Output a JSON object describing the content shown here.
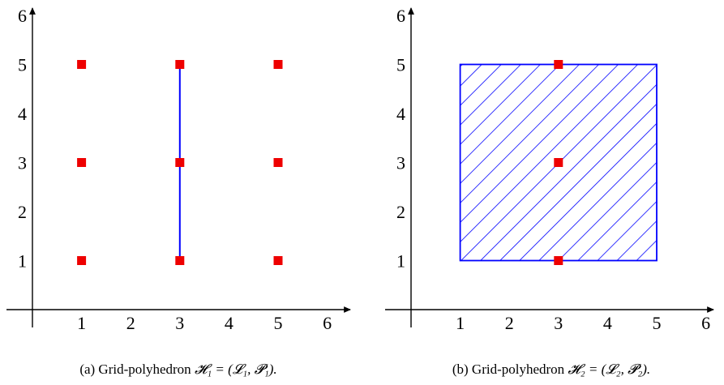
{
  "figure": {
    "panels": [
      {
        "id": "a",
        "caption_prefix": "(a) Grid-polyhedron",
        "caption_math": "𝓗₁ = (𝓛₁, 𝓟₁).",
        "x_ticks": [
          "1",
          "2",
          "3",
          "4",
          "5",
          "6"
        ],
        "y_ticks": [
          "1",
          "2",
          "3",
          "4",
          "5",
          "6"
        ],
        "polyhedron": {
          "kind": "segment",
          "x": [
            3,
            3
          ],
          "y": [
            1,
            5
          ],
          "color": "#0000ff"
        },
        "points": [
          [
            1,
            1
          ],
          [
            1,
            3
          ],
          [
            1,
            5
          ],
          [
            3,
            1
          ],
          [
            3,
            3
          ],
          [
            3,
            5
          ],
          [
            5,
            1
          ],
          [
            5,
            3
          ],
          [
            5,
            5
          ]
        ],
        "point_color": "#ee0000"
      },
      {
        "id": "b",
        "caption_prefix": "(b) Grid-polyhedron",
        "caption_math": "𝓗₂ = (𝓛₂, 𝓟₂).",
        "x_ticks": [
          "1",
          "2",
          "3",
          "4",
          "5",
          "6"
        ],
        "y_ticks": [
          "1",
          "2",
          "3",
          "4",
          "5",
          "6"
        ],
        "polyhedron": {
          "kind": "box",
          "x": [
            1,
            5
          ],
          "y": [
            1,
            5
          ],
          "color": "#0000ff",
          "fill": "diagonal-hatch"
        },
        "points": [
          [
            3,
            1
          ],
          [
            3,
            3
          ],
          [
            3,
            5
          ]
        ],
        "point_color": "#ee0000"
      }
    ]
  }
}
